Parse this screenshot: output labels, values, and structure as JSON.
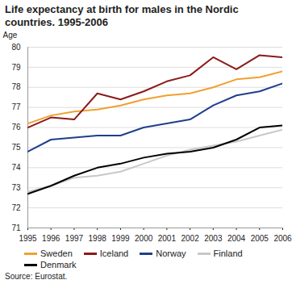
{
  "chart_data": {
    "type": "line",
    "title": "Life expectancy at birth for males in the Nordic countries. 1995-2006",
    "y_label": "Age",
    "source": "Source: Eurostat.",
    "x": [
      1995,
      1996,
      1997,
      1998,
      1999,
      2000,
      2001,
      2002,
      2003,
      2004,
      2005,
      2006
    ],
    "xlim": [
      1995,
      2006
    ],
    "xticks": [
      1995,
      1996,
      1997,
      1998,
      1999,
      2000,
      2001,
      2002,
      2003,
      2004,
      2005,
      2006
    ],
    "ylim": [
      71,
      80
    ],
    "yticks": [
      71,
      72,
      73,
      74,
      75,
      76,
      77,
      78,
      79,
      80
    ],
    "grid": true,
    "legend": "bottom",
    "series": [
      {
        "name": "Sweden",
        "color": "#f0a030",
        "values": [
          76.2,
          76.6,
          76.8,
          76.9,
          77.1,
          77.4,
          77.6,
          77.7,
          78.0,
          78.4,
          78.5,
          78.8
        ]
      },
      {
        "name": "Iceland",
        "color": "#8b1a1a",
        "values": [
          76.0,
          76.5,
          76.4,
          77.7,
          77.4,
          77.8,
          78.3,
          78.6,
          79.5,
          78.9,
          79.6,
          79.5
        ]
      },
      {
        "name": "Norway",
        "color": "#1f3f8a",
        "values": [
          74.8,
          75.4,
          75.5,
          75.6,
          75.6,
          76.0,
          76.2,
          76.4,
          77.1,
          77.6,
          77.8,
          78.2
        ]
      },
      {
        "name": "Finland",
        "color": "#c8c8c8",
        "values": [
          72.8,
          73.1,
          73.5,
          73.6,
          73.8,
          74.2,
          74.6,
          74.9,
          75.1,
          75.3,
          75.6,
          75.9
        ]
      },
      {
        "name": "Denmark",
        "color": "#000000",
        "values": [
          72.7,
          73.1,
          73.6,
          74.0,
          74.2,
          74.5,
          74.7,
          74.8,
          75.0,
          75.4,
          76.0,
          76.1
        ]
      }
    ]
  }
}
